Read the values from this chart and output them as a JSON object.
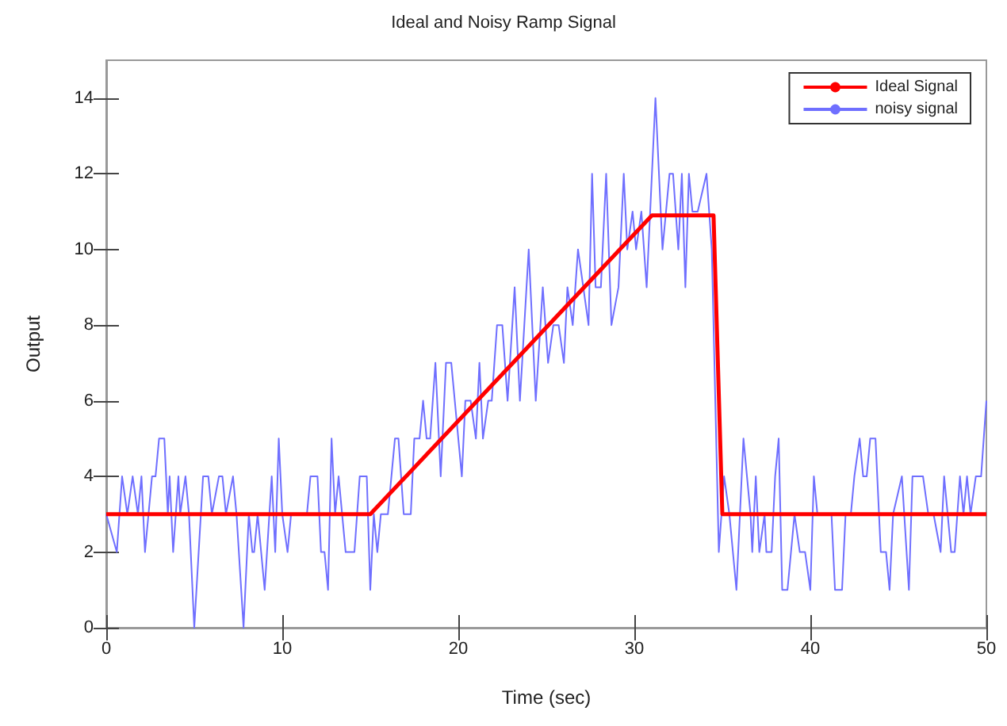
{
  "chart_data": {
    "type": "line",
    "title": "Ideal and Noisy Ramp Signal",
    "xlabel": "Time (sec)",
    "ylabel": "Output",
    "xlim": [
      0,
      50
    ],
    "xticks": [
      0,
      10,
      20,
      30,
      40,
      50
    ],
    "ylim": [
      0,
      15
    ],
    "yticks": [
      0,
      2,
      4,
      6,
      8,
      10,
      12,
      14
    ],
    "grid": false,
    "legend": "top right",
    "marker": "none",
    "line_style": "solid",
    "series": [
      {
        "name": "Ideal Signal",
        "color": "#ff0000",
        "x": [
          0,
          15,
          31,
          34.5,
          35,
          50
        ],
        "values": [
          3,
          3,
          10.9,
          10.9,
          3,
          3
        ]
      },
      {
        "name": "noisy signal",
        "color": "#6f6fff",
        "x": [
          0.0,
          0.6,
          0.9,
          1.2,
          1.5,
          1.8,
          2.0,
          2.2,
          2.6,
          2.8,
          3.0,
          3.3,
          3.5,
          3.6,
          3.8,
          4.1,
          4.2,
          4.5,
          4.7,
          5.0,
          5.5,
          5.8,
          6.0,
          6.4,
          6.6,
          6.8,
          7.2,
          7.4,
          7.8,
          8.1,
          8.3,
          8.4,
          8.6,
          9.0,
          9.4,
          9.6,
          9.8,
          10.0,
          10.3,
          10.5,
          11.4,
          11.6,
          12.0,
          12.2,
          12.4,
          12.6,
          12.8,
          13.0,
          13.2,
          13.6,
          14.1,
          14.4,
          14.8,
          15.0,
          15.2,
          15.4,
          15.6,
          16.0,
          16.4,
          16.6,
          16.9,
          17.3,
          17.5,
          17.8,
          18.0,
          18.2,
          18.4,
          18.7,
          19.0,
          19.3,
          19.6,
          20.2,
          20.4,
          20.7,
          21.0,
          21.2,
          21.4,
          21.7,
          21.9,
          22.2,
          22.5,
          22.8,
          23.2,
          23.5,
          24.0,
          24.4,
          24.8,
          25.1,
          25.4,
          25.7,
          26.0,
          26.2,
          26.5,
          26.8,
          27.1,
          27.4,
          27.6,
          27.8,
          28.1,
          28.4,
          28.7,
          29.1,
          29.4,
          29.6,
          29.9,
          30.1,
          30.4,
          30.7,
          30.9,
          31.2,
          31.6,
          32.0,
          32.2,
          32.5,
          32.7,
          32.9,
          33.1,
          33.3,
          33.6,
          34.1,
          34.4,
          34.8,
          35.1,
          35.4,
          35.8,
          36.2,
          36.6,
          36.7,
          36.9,
          37.1,
          37.4,
          37.5,
          37.8,
          38.0,
          38.2,
          38.4,
          38.7,
          39.1,
          39.4,
          39.7,
          40.0,
          40.2,
          40.4,
          41.0,
          41.2,
          41.4,
          41.8,
          42.0,
          42.3,
          42.5,
          42.8,
          43.0,
          43.2,
          43.4,
          43.7,
          44.0,
          44.3,
          44.5,
          44.7,
          45.2,
          45.6,
          45.8,
          46.1,
          46.4,
          46.7,
          47.0,
          47.4,
          47.6,
          48.0,
          48.2,
          48.5,
          48.7,
          48.9,
          49.1,
          49.4,
          49.7,
          50.0
        ],
        "values": [
          3,
          2,
          4,
          3,
          4,
          3,
          4,
          2,
          4,
          4,
          5,
          5,
          3,
          4,
          2,
          4,
          3,
          4,
          3,
          0,
          4,
          4,
          3,
          4,
          4,
          3,
          4,
          3,
          0,
          3,
          2,
          2,
          3,
          1,
          4,
          2,
          5,
          3,
          2,
          3,
          3,
          4,
          4,
          2,
          2,
          1,
          5,
          3,
          4,
          2,
          2,
          4,
          4,
          1,
          3,
          2,
          3,
          3,
          5,
          5,
          3,
          3,
          5,
          5,
          6,
          5,
          5,
          7,
          4,
          7,
          7,
          4,
          6,
          6,
          5,
          7,
          5,
          6,
          6,
          8,
          8,
          6,
          9,
          6,
          10,
          6,
          9,
          7,
          8,
          8,
          7,
          9,
          8,
          10,
          9,
          8,
          12,
          9,
          9,
          12,
          8,
          9,
          12,
          10,
          11,
          10,
          11,
          9,
          11,
          14,
          10,
          12,
          12,
          10,
          12,
          9,
          12,
          11,
          11,
          12,
          10,
          2,
          4,
          3,
          1,
          5,
          3,
          2,
          4,
          2,
          3,
          2,
          2,
          4,
          5,
          1,
          1,
          3,
          2,
          2,
          1,
          4,
          3,
          3,
          3,
          1,
          1,
          3,
          3,
          4,
          5,
          4,
          4,
          5,
          5,
          2,
          2,
          1,
          3,
          4,
          1,
          4,
          4,
          4,
          3,
          3,
          2,
          4,
          2,
          2,
          4,
          3,
          4,
          3,
          4,
          4,
          6
        ]
      }
    ]
  }
}
